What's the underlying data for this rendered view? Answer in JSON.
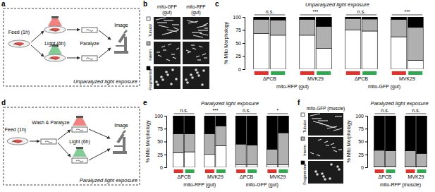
{
  "panel_letters": [
    "a",
    "b",
    "c",
    "d",
    "e",
    "f"
  ],
  "diagrams": [
    {
      "steps": [
        "Feed (1h)",
        "Light (6h)",
        "Paralyze",
        "Image"
      ],
      "caption": "Unparalyzed light exposure"
    },
    {
      "steps": [
        "Feed (1h)",
        "Wash & Paralyze",
        "Light (6h)",
        "Image"
      ],
      "caption": "Paralyzed light exposure"
    }
  ],
  "images": [
    {
      "columns": [
        [
          "mito-GFP",
          "(gut)"
        ],
        [
          "mito-RFP",
          "(gut)"
        ]
      ]
    },
    {
      "columns": [
        [
          "mito-GFP (muscle)"
        ]
      ]
    }
  ],
  "chart_data": [
    {
      "type": "bar",
      "stacked": true,
      "title": "Unparalyzed light exposure",
      "y_label": "% Mito Morphology",
      "ylim": [
        0,
        100
      ],
      "yticks": [
        0,
        25,
        50,
        75,
        100
      ],
      "groups": [
        {
          "label": "mito-RFP (gut)",
          "strains": [
            "ΔPCB",
            "MVK29"
          ],
          "significance": [
            "n.s.",
            "***"
          ],
          "light_colors": [
            "#e2302a",
            "#2fa84f",
            "#e2302a",
            "#2fa84f"
          ]
        },
        {
          "label": "mito-GFP (gut)",
          "strains": [
            "ΔPCB",
            "MVK29"
          ],
          "significance": [
            "n.s.",
            "***"
          ],
          "light_colors": [
            "#e2302a",
            "#2fa84f",
            "#e2302a",
            "#2fa84f"
          ]
        }
      ],
      "series": [
        {
          "name": "Tubular",
          "color": "#ffffff",
          "values": [
            68,
            65,
            65,
            40,
            75,
            73,
            62,
            17
          ]
        },
        {
          "name": "Interm",
          "color": "#b0b0b0",
          "values": [
            27,
            29,
            30,
            42,
            22,
            23,
            33,
            63
          ]
        },
        {
          "name": "Fragmented",
          "color": "#000000",
          "values": [
            5,
            6,
            5,
            18,
            3,
            4,
            5,
            20
          ]
        }
      ]
    },
    {
      "type": "bar",
      "stacked": true,
      "title": "Paralyzed light exposure",
      "y_label": "% Mito Morphology",
      "ylim": [
        0,
        100
      ],
      "yticks": [
        0,
        25,
        50,
        75,
        100
      ],
      "groups": [
        {
          "label": "mito-RFP (gut)",
          "strains": [
            "ΔPCB",
            "MVK29"
          ],
          "significance": [
            "n.s.",
            "***"
          ],
          "light_colors": [
            "#e2302a",
            "#2fa84f",
            "#e2302a",
            "#2fa84f"
          ]
        },
        {
          "label": "mito-GFP (gut)",
          "strains": [
            "ΔPCB",
            "MVK29"
          ],
          "significance": [
            "n.s.",
            "*"
          ],
          "light_colors": [
            "#e2302a",
            "#2fa84f",
            "#e2302a",
            "#2fa84f"
          ]
        }
      ],
      "series": [
        {
          "color": "#ffffff",
          "values": [
            28,
            30,
            25,
            42,
            5,
            5,
            5,
            5
          ]
        },
        {
          "color": "#b0b0b0",
          "values": [
            37,
            35,
            40,
            38,
            40,
            38,
            30,
            62
          ]
        },
        {
          "color": "#000000",
          "values": [
            35,
            35,
            35,
            20,
            55,
            57,
            65,
            33
          ]
        }
      ]
    },
    {
      "type": "bar",
      "stacked": true,
      "title": "Paralyzed light exposure",
      "y_label": "% Mito Morphology",
      "ylim": [
        0,
        100
      ],
      "yticks": [
        0,
        25,
        50,
        75,
        100
      ],
      "groups": [
        {
          "label": "mito-RFP (muscle)",
          "strains": [
            "ΔPCB",
            "MVK29"
          ],
          "significance": [
            "n.s.",
            "n.s."
          ],
          "light_colors": [
            "#e2302a",
            "#2fa84f",
            "#e2302a",
            "#2fa84f"
          ]
        }
      ],
      "series": [
        {
          "name": "Tubular",
          "color": "#ffffff",
          "values": [
            2,
            2,
            2,
            2
          ]
        },
        {
          "name": "Interm",
          "color": "#b0b0b0",
          "values": [
            31,
            30,
            30,
            25
          ]
        },
        {
          "name": "Fragmented",
          "color": "#000000",
          "values": [
            67,
            68,
            68,
            73
          ]
        }
      ]
    }
  ]
}
